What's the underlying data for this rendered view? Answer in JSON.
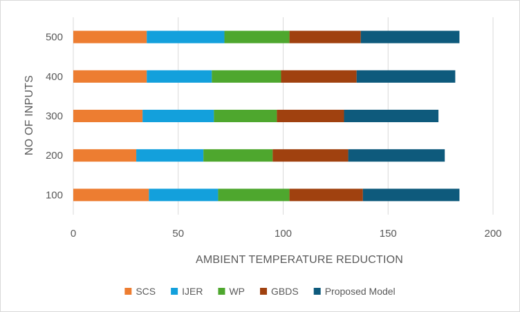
{
  "chart_data": {
    "type": "bar",
    "orientation": "horizontal",
    "stacked": true,
    "title": "",
    "xlabel": "AMBIENT TEMPERATURE REDUCTION",
    "ylabel": "NO OF INPUTS",
    "xlim": [
      0,
      200
    ],
    "xticks": [
      "0",
      "50",
      "100",
      "150",
      "200"
    ],
    "grid": "vertical",
    "legend_position": "bottom",
    "categories": [
      "100",
      "200",
      "300",
      "400",
      "500"
    ],
    "series": [
      {
        "name": "SCS",
        "color": "#ED7D31",
        "values": [
          36,
          30,
          33,
          35,
          35
        ]
      },
      {
        "name": "IJER",
        "color": "#13A0DC",
        "values": [
          33,
          32,
          34,
          31,
          37
        ]
      },
      {
        "name": "WP",
        "color": "#4EA72E",
        "values": [
          34,
          33,
          30,
          33,
          31
        ]
      },
      {
        "name": "GBDS",
        "color": "#A0410F",
        "values": [
          35,
          36,
          32,
          36,
          34
        ]
      },
      {
        "name": "Proposed Model",
        "color": "#0E5A7C",
        "values": [
          46,
          46,
          45,
          47,
          47
        ]
      }
    ]
  }
}
